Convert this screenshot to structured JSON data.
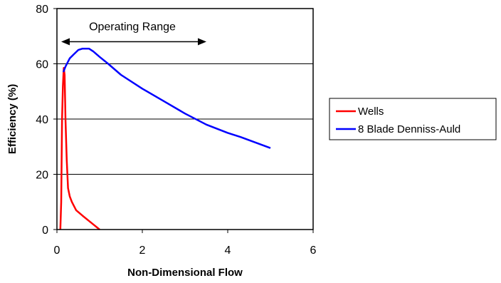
{
  "chart_data": {
    "type": "line",
    "title": "",
    "xlabel": "Non-Dimensional Flow",
    "ylabel": "Efficiency (%)",
    "xlim": [
      0,
      6
    ],
    "ylim": [
      0,
      80
    ],
    "x_ticks": [
      "0",
      "2",
      "4",
      "6"
    ],
    "y_ticks": [
      "0",
      "20",
      "40",
      "60",
      "80"
    ],
    "grid": "horizontal",
    "legend_placement": "right",
    "annotation": {
      "text": "Operating Range",
      "x_from": 0.1,
      "x_to": 3.5,
      "y": 68
    },
    "series": [
      {
        "name": "Wells",
        "color": "#ff0000",
        "points": [
          [
            0.08,
            0
          ],
          [
            0.1,
            10
          ],
          [
            0.12,
            40
          ],
          [
            0.14,
            52
          ],
          [
            0.16,
            58.5
          ],
          [
            0.18,
            56
          ],
          [
            0.2,
            40
          ],
          [
            0.23,
            25
          ],
          [
            0.26,
            15
          ],
          [
            0.3,
            12
          ],
          [
            0.35,
            10
          ],
          [
            0.45,
            7
          ],
          [
            0.6,
            5
          ],
          [
            0.8,
            2.5
          ],
          [
            1.0,
            0
          ]
        ]
      },
      {
        "name": "8 Blade Denniss-Auld",
        "color": "#0000ff",
        "points": [
          [
            0.15,
            57
          ],
          [
            0.2,
            59
          ],
          [
            0.3,
            62
          ],
          [
            0.4,
            63.5
          ],
          [
            0.5,
            65
          ],
          [
            0.6,
            65.5
          ],
          [
            0.75,
            65.5
          ],
          [
            0.85,
            64.5
          ],
          [
            1.0,
            62.5
          ],
          [
            1.2,
            60
          ],
          [
            1.5,
            56
          ],
          [
            2.0,
            51
          ],
          [
            2.5,
            46.5
          ],
          [
            3.0,
            42
          ],
          [
            3.5,
            38
          ],
          [
            4.0,
            35
          ],
          [
            4.3,
            33.5
          ],
          [
            5.0,
            29.5
          ]
        ]
      }
    ]
  }
}
